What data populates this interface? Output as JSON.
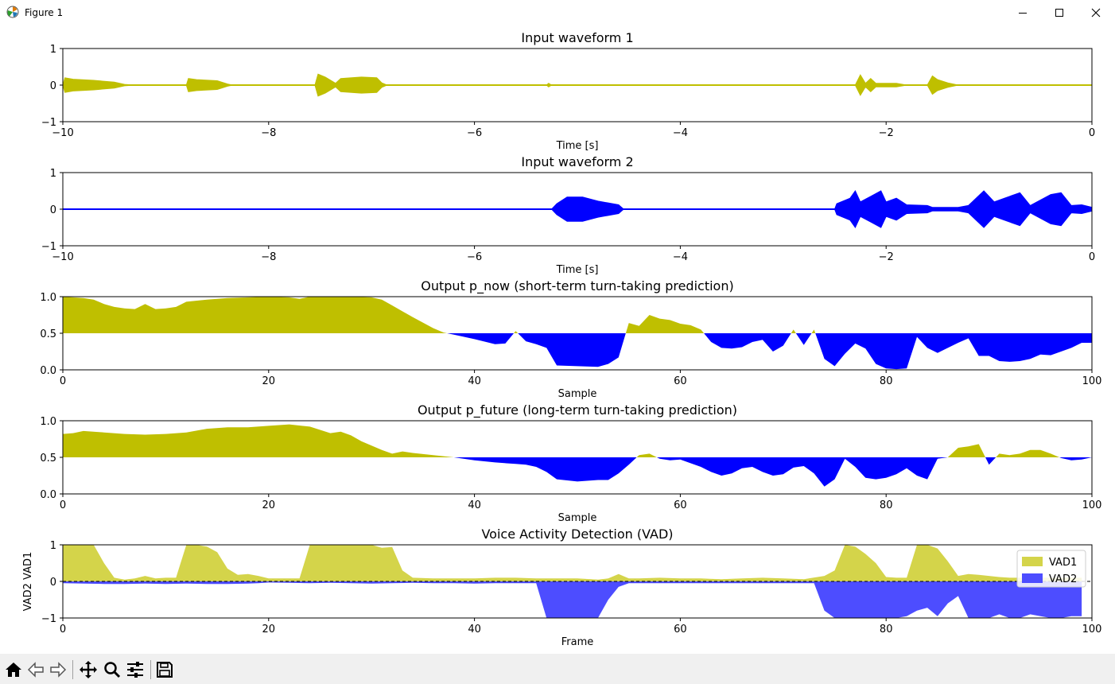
{
  "window": {
    "title": "Figure 1",
    "icon": "matplotlib-icon",
    "controls": [
      "minimize-icon",
      "maximize-icon",
      "close-icon"
    ]
  },
  "colors": {
    "yellow": "#bfbf00",
    "blue": "#0000ff",
    "vad1": "#d4d44a",
    "vad2": "#4d4dff"
  },
  "chart_data": [
    {
      "type": "line",
      "title": "Input waveform 1",
      "xlabel": "Time [s]",
      "ylabel": "",
      "xlim": [
        -10,
        0
      ],
      "ylim": [
        -1,
        1
      ],
      "xticks": [
        "−10",
        "−8",
        "−6",
        "−4",
        "−2",
        "0"
      ],
      "yticks": [
        "−1",
        "0",
        "1"
      ],
      "color": "#bfbf00",
      "series": [
        {
          "envelope": [
            [
              -10.0,
              0.0
            ],
            [
              -9.98,
              0.2
            ],
            [
              -9.9,
              0.16
            ],
            [
              -9.7,
              0.13
            ],
            [
              -9.5,
              0.08
            ],
            [
              -9.4,
              0.02
            ],
            [
              -9.3,
              0.0
            ],
            [
              -8.8,
              0.0
            ],
            [
              -8.78,
              0.18
            ],
            [
              -8.7,
              0.15
            ],
            [
              -8.5,
              0.12
            ],
            [
              -8.4,
              0.03
            ],
            [
              -8.35,
              0.0
            ],
            [
              -7.55,
              0.0
            ],
            [
              -7.52,
              0.3
            ],
            [
              -7.45,
              0.22
            ],
            [
              -7.35,
              0.05
            ],
            [
              -7.3,
              0.18
            ],
            [
              -7.1,
              0.22
            ],
            [
              -6.95,
              0.2
            ],
            [
              -6.9,
              0.06
            ],
            [
              -6.85,
              0.0
            ],
            [
              -5.3,
              0.0
            ],
            [
              -5.28,
              0.05
            ],
            [
              -5.25,
              0.0
            ],
            [
              -2.3,
              0.0
            ],
            [
              -2.25,
              0.28
            ],
            [
              -2.2,
              0.05
            ],
            [
              -2.15,
              0.18
            ],
            [
              -2.1,
              0.05
            ],
            [
              -1.9,
              0.05
            ],
            [
              -1.8,
              0.0
            ],
            [
              -1.6,
              0.0
            ],
            [
              -1.55,
              0.25
            ],
            [
              -1.5,
              0.15
            ],
            [
              -1.4,
              0.06
            ],
            [
              -1.3,
              0.0
            ],
            [
              0.0,
              0.0
            ]
          ]
        }
      ]
    },
    {
      "type": "line",
      "title": "Input waveform 2",
      "xlabel": "Time [s]",
      "ylabel": "",
      "xlim": [
        -10,
        0
      ],
      "ylim": [
        -1,
        1
      ],
      "xticks": [
        "−10",
        "−8",
        "−6",
        "−4",
        "−2",
        "0"
      ],
      "yticks": [
        "−1",
        "0",
        "1"
      ],
      "color": "#0000ff",
      "series": [
        {
          "envelope": [
            [
              -10.0,
              0.0
            ],
            [
              -5.25,
              0.0
            ],
            [
              -5.2,
              0.15
            ],
            [
              -5.1,
              0.33
            ],
            [
              -4.95,
              0.33
            ],
            [
              -4.8,
              0.22
            ],
            [
              -4.6,
              0.12
            ],
            [
              -4.55,
              0.0
            ],
            [
              -2.5,
              0.0
            ],
            [
              -2.48,
              0.15
            ],
            [
              -2.35,
              0.3
            ],
            [
              -2.3,
              0.5
            ],
            [
              -2.25,
              0.2
            ],
            [
              -2.15,
              0.35
            ],
            [
              -2.05,
              0.5
            ],
            [
              -2.0,
              0.2
            ],
            [
              -1.9,
              0.3
            ],
            [
              -1.8,
              0.12
            ],
            [
              -1.6,
              0.1
            ],
            [
              -1.55,
              0.05
            ],
            [
              -1.3,
              0.05
            ],
            [
              -1.2,
              0.1
            ],
            [
              -1.05,
              0.5
            ],
            [
              -0.95,
              0.2
            ],
            [
              -0.85,
              0.3
            ],
            [
              -0.7,
              0.45
            ],
            [
              -0.6,
              0.1
            ],
            [
              -0.4,
              0.4
            ],
            [
              -0.3,
              0.45
            ],
            [
              -0.2,
              0.1
            ],
            [
              -0.1,
              0.12
            ],
            [
              0.0,
              0.05
            ]
          ]
        }
      ]
    },
    {
      "type": "area",
      "title": "Output p_now (short-term turn-taking prediction)",
      "xlabel": "Sample",
      "ylabel": "",
      "xlim": [
        0,
        100
      ],
      "ylim": [
        0.0,
        1.0
      ],
      "xticks": [
        "0",
        "20",
        "40",
        "60",
        "80",
        "100"
      ],
      "yticks": [
        "0.0",
        "0.5",
        "1.0"
      ],
      "baseline": 0.5,
      "above_color": "#bfbf00",
      "below_color": "#0000ff",
      "x": [
        0,
        2,
        3,
        4,
        5,
        6,
        7,
        8,
        9,
        10,
        11,
        12,
        14,
        16,
        18,
        20,
        22,
        23,
        24,
        26,
        28,
        30,
        31,
        32,
        34,
        36,
        37,
        38,
        40,
        42,
        43,
        44,
        45,
        46,
        47,
        48,
        50,
        52,
        53,
        54,
        55,
        56,
        57,
        58,
        59,
        60,
        61,
        62,
        63,
        64,
        65,
        66,
        67,
        68,
        69,
        70,
        71,
        72,
        73,
        74,
        75,
        76,
        77,
        78,
        79,
        80,
        81,
        82,
        83,
        84,
        85,
        86,
        87,
        88,
        89,
        90,
        91,
        92,
        93,
        94,
        95,
        96,
        97,
        98,
        99,
        100
      ],
      "values": [
        1.0,
        0.98,
        0.96,
        0.9,
        0.86,
        0.84,
        0.83,
        0.9,
        0.83,
        0.84,
        0.86,
        0.93,
        0.96,
        0.98,
        0.99,
        1.0,
        0.99,
        0.97,
        1.0,
        1.0,
        1.0,
        0.99,
        0.96,
        0.88,
        0.72,
        0.57,
        0.51,
        0.48,
        0.42,
        0.35,
        0.36,
        0.53,
        0.39,
        0.35,
        0.3,
        0.06,
        0.05,
        0.04,
        0.08,
        0.17,
        0.64,
        0.6,
        0.75,
        0.7,
        0.68,
        0.63,
        0.61,
        0.55,
        0.38,
        0.3,
        0.29,
        0.31,
        0.38,
        0.41,
        0.25,
        0.33,
        0.55,
        0.34,
        0.55,
        0.15,
        0.05,
        0.22,
        0.36,
        0.29,
        0.08,
        0.02,
        0.01,
        0.02,
        0.45,
        0.3,
        0.23,
        0.3,
        0.37,
        0.43,
        0.19,
        0.19,
        0.12,
        0.11,
        0.12,
        0.15,
        0.21,
        0.2,
        0.25,
        0.3,
        0.37,
        0.37
      ]
    },
    {
      "type": "area",
      "title": "Output p_future (long-term turn-taking prediction)",
      "xlabel": "Sample",
      "ylabel": "",
      "xlim": [
        0,
        100
      ],
      "ylim": [
        0.0,
        1.0
      ],
      "xticks": [
        "0",
        "20",
        "40",
        "60",
        "80",
        "100"
      ],
      "yticks": [
        "0.0",
        "0.5",
        "1.0"
      ],
      "baseline": 0.5,
      "above_color": "#bfbf00",
      "below_color": "#0000ff",
      "x": [
        0,
        1,
        2,
        4,
        6,
        8,
        10,
        12,
        14,
        16,
        18,
        20,
        22,
        24,
        26,
        27,
        28,
        29,
        30,
        31,
        32,
        33,
        34,
        36,
        38,
        40,
        42,
        44,
        45,
        46,
        47,
        48,
        50,
        52,
        53,
        54,
        55,
        56,
        57,
        58,
        59,
        60,
        61,
        62,
        63,
        64,
        65,
        66,
        67,
        68,
        69,
        70,
        71,
        72,
        73,
        74,
        75,
        76,
        77,
        78,
        79,
        80,
        81,
        82,
        83,
        84,
        85,
        86,
        87,
        88,
        89,
        90,
        91,
        92,
        93,
        94,
        95,
        96,
        97,
        98,
        99,
        100
      ],
      "values": [
        0.82,
        0.83,
        0.86,
        0.84,
        0.82,
        0.81,
        0.82,
        0.84,
        0.89,
        0.91,
        0.91,
        0.93,
        0.95,
        0.92,
        0.83,
        0.85,
        0.8,
        0.72,
        0.66,
        0.6,
        0.55,
        0.58,
        0.56,
        0.53,
        0.5,
        0.46,
        0.43,
        0.41,
        0.4,
        0.37,
        0.3,
        0.2,
        0.17,
        0.19,
        0.19,
        0.28,
        0.4,
        0.53,
        0.55,
        0.48,
        0.46,
        0.47,
        0.42,
        0.37,
        0.3,
        0.25,
        0.28,
        0.35,
        0.37,
        0.3,
        0.25,
        0.27,
        0.36,
        0.38,
        0.28,
        0.1,
        0.2,
        0.48,
        0.37,
        0.22,
        0.2,
        0.22,
        0.27,
        0.35,
        0.25,
        0.2,
        0.48,
        0.5,
        0.63,
        0.65,
        0.68,
        0.4,
        0.55,
        0.53,
        0.55,
        0.6,
        0.6,
        0.55,
        0.49,
        0.46,
        0.47,
        0.5
      ]
    },
    {
      "type": "area",
      "title": "Voice Activity Detection (VAD)",
      "xlabel": "Frame",
      "ylabel": "VAD2  VAD1",
      "xlim": [
        0,
        100
      ],
      "ylim": [
        -1,
        1
      ],
      "xticks": [
        "0",
        "20",
        "40",
        "60",
        "80",
        "100"
      ],
      "yticks": [
        "−1",
        "0",
        "1"
      ],
      "legend": "right",
      "series": [
        {
          "name": "VAD1",
          "color": "#d4d44a",
          "x": [
            0,
            1,
            2,
            3,
            4,
            5,
            6,
            7,
            8,
            9,
            10,
            11,
            12,
            13,
            14,
            15,
            16,
            17,
            18,
            19,
            20,
            21,
            22,
            23,
            24,
            25,
            26,
            27,
            28,
            29,
            30,
            31,
            32,
            33,
            34,
            36,
            38,
            40,
            42,
            44,
            46,
            48,
            50,
            52,
            53,
            54,
            55,
            56,
            58,
            60,
            62,
            64,
            66,
            68,
            70,
            72,
            74,
            75,
            76,
            77,
            78,
            79,
            80,
            81,
            82,
            83,
            84,
            85,
            86,
            87,
            88,
            89,
            90,
            91,
            92,
            93,
            94,
            95,
            96,
            97,
            98,
            99
          ],
          "values": [
            1.0,
            1.0,
            1.0,
            1.0,
            0.5,
            0.1,
            0.05,
            0.08,
            0.15,
            0.08,
            0.1,
            0.1,
            1.0,
            1.0,
            0.95,
            0.8,
            0.35,
            0.18,
            0.2,
            0.15,
            0.08,
            0.08,
            0.08,
            0.08,
            1.0,
            1.0,
            1.0,
            1.0,
            1.0,
            1.0,
            1.0,
            0.92,
            0.94,
            0.3,
            0.1,
            0.08,
            0.08,
            0.08,
            0.1,
            0.1,
            0.08,
            0.08,
            0.08,
            0.05,
            0.08,
            0.2,
            0.08,
            0.08,
            0.1,
            0.08,
            0.08,
            0.06,
            0.08,
            0.1,
            0.08,
            0.06,
            0.15,
            0.3,
            1.0,
            0.95,
            0.75,
            0.5,
            0.12,
            0.1,
            0.1,
            1.0,
            1.0,
            0.9,
            0.55,
            0.15,
            0.2,
            0.18,
            0.15,
            0.12,
            0.1,
            0.1,
            0.1,
            0.1,
            0.1,
            0.1,
            0.1,
            0.1
          ]
        },
        {
          "name": "VAD2",
          "color": "#4d4dff",
          "x": [
            0,
            2,
            4,
            6,
            8,
            10,
            12,
            14,
            16,
            18,
            19,
            20,
            22,
            24,
            26,
            28,
            30,
            32,
            34,
            36,
            38,
            40,
            42,
            44,
            45,
            46,
            47,
            48,
            50,
            52,
            53,
            54,
            55,
            56,
            58,
            60,
            62,
            64,
            66,
            68,
            70,
            72,
            73,
            74,
            75,
            76,
            78,
            80,
            81,
            82,
            83,
            84,
            85,
            86,
            87,
            88,
            89,
            90,
            91,
            92,
            93,
            94,
            95,
            96,
            97,
            98,
            99
          ],
          "values": [
            -0.05,
            -0.06,
            -0.07,
            -0.07,
            -0.06,
            -0.07,
            -0.06,
            -0.07,
            -0.07,
            -0.06,
            -0.05,
            -0.03,
            -0.04,
            -0.05,
            -0.04,
            -0.05,
            -0.06,
            -0.05,
            -0.04,
            -0.05,
            -0.05,
            -0.06,
            -0.05,
            -0.05,
            -0.05,
            -0.05,
            -1.0,
            -1.0,
            -1.0,
            -1.0,
            -0.5,
            -0.15,
            -0.05,
            -0.05,
            -0.05,
            -0.05,
            -0.05,
            -0.05,
            -0.05,
            -0.05,
            -0.05,
            -0.05,
            -0.05,
            -0.8,
            -1.0,
            -1.0,
            -1.0,
            -1.0,
            -1.0,
            -0.95,
            -0.8,
            -0.72,
            -0.95,
            -0.6,
            -0.4,
            -1.0,
            -1.0,
            -1.0,
            -0.9,
            -1.0,
            -1.0,
            -0.9,
            -0.95,
            -1.0,
            -1.0,
            -0.95,
            -0.95
          ]
        }
      ]
    }
  ],
  "toolbar": [
    "home-icon",
    "back-icon",
    "forward-icon",
    "pan-icon",
    "zoom-icon",
    "configure-subplots-icon",
    "save-icon"
  ]
}
